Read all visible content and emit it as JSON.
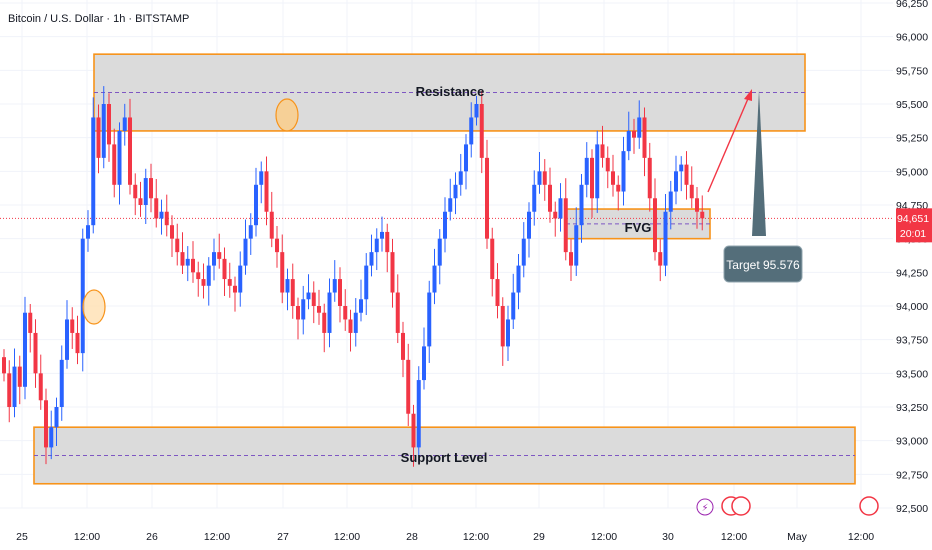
{
  "header": {
    "symbol": "Bitcoin / U.S. Dollar · 1h · BITSTAMP"
  },
  "price_axis": {
    "ticks": [
      "96,250",
      "96,000",
      "95,750",
      "95,500",
      "95,250",
      "95,000",
      "94,750",
      "94,500",
      "94,250",
      "94,000",
      "93,750",
      "93,500",
      "93,250",
      "93,000",
      "92,750",
      "92,500"
    ],
    "current_price": "94,651",
    "countdown": "20:01",
    "current_color": "#f23645"
  },
  "time_axis": {
    "ticks": [
      "25",
      "12:00",
      "26",
      "12:00",
      "27",
      "12:00",
      "28",
      "12:00",
      "29",
      "12:00",
      "30",
      "12:00",
      "May",
      "12:00"
    ]
  },
  "annotations": {
    "resistance_label": "Resistance",
    "support_label": "Support Level",
    "fvg_label": "FVG",
    "target_label": "Target 95.576"
  },
  "colors": {
    "up": "#2962ff",
    "down": "#f23645",
    "zone_border": "#f7931a",
    "zone_fill": "#d9d9d9",
    "target_box": "#546e7a"
  },
  "chart_data": {
    "type": "candlestick",
    "title": "Bitcoin / U.S. Dollar · 1h · BITSTAMP",
    "ylim": [
      92500,
      96250
    ],
    "current_price": 94651,
    "zones": [
      {
        "name": "Resistance",
        "low": 95300,
        "high": 95870
      },
      {
        "name": "Support Level",
        "low": 92680,
        "high": 93100
      },
      {
        "name": "FVG",
        "low": 94500,
        "high": 94720
      }
    ],
    "target": 95576,
    "series": [
      {
        "name": "close",
        "values": [
          93500,
          93250,
          93550,
          93400,
          93950,
          93800,
          93500,
          93300,
          92950,
          93100,
          93250,
          93600,
          93900,
          93800,
          93650,
          94500,
          94600,
          95400,
          95100,
          95500,
          95200,
          94900,
          95300,
          95400,
          94900,
          94800,
          94750,
          94950,
          94800,
          94650,
          94700,
          94600,
          94500,
          94400,
          94300,
          94350,
          94250,
          94200,
          94150,
          94300,
          94400,
          94350,
          94200,
          94150,
          94100,
          94300,
          94500,
          94600,
          94900,
          95000,
          94700,
          94500,
          94400,
          94100,
          94200,
          94000,
          93900,
          94050,
          94100,
          94000,
          93950,
          93800,
          94100,
          94200,
          94000,
          93900,
          93800,
          93950,
          94050,
          94300,
          94400,
          94500,
          94550,
          94400,
          94100,
          93800,
          93600,
          93200,
          92950,
          93450,
          93700,
          94100,
          94300,
          94500,
          94700,
          94800,
          94900,
          95000,
          95200,
          95400,
          95500,
          95100,
          94500,
          94200,
          94000,
          93700,
          93900,
          94100,
          94300,
          94500,
          94700,
          94900,
          95000,
          94900,
          94700,
          94650,
          94800,
          94400,
          94300,
          94600,
          94900,
          95100,
          94800,
          95200,
          95100,
          95000,
          94900,
          94850,
          95150,
          95300,
          95250,
          95400,
          95100,
          94800,
          94400,
          94300,
          94700,
          94850,
          95000,
          95050,
          94900,
          94800,
          94700,
          94651
        ]
      }
    ]
  }
}
